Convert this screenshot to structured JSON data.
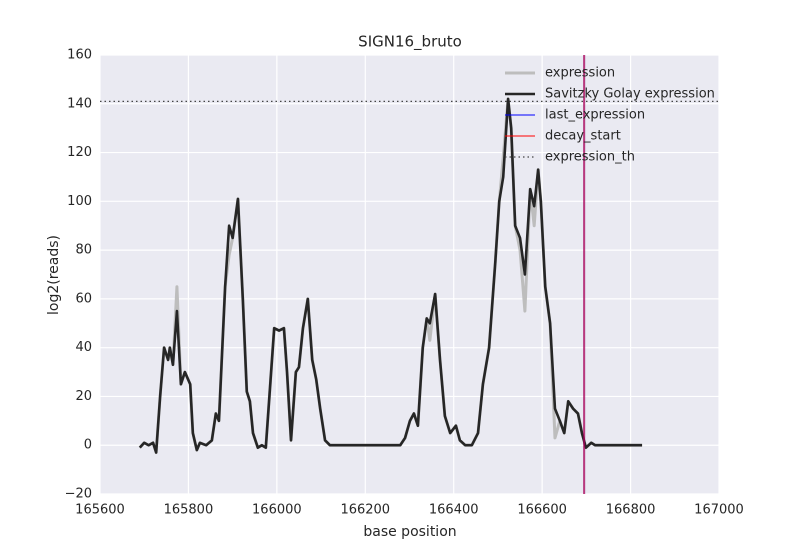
{
  "chart_data": {
    "type": "line",
    "title": "SIGN16_bruto",
    "xlabel": "base position",
    "ylabel": "log2(reads)",
    "x": [
      165690,
      165700,
      165710,
      165720,
      165727,
      165736,
      165745,
      165754,
      165758,
      165765,
      165774,
      165783,
      165792,
      165804,
      165810,
      165819,
      165826,
      165840,
      165853,
      165862,
      165869,
      165883,
      165892,
      165900,
      165912,
      165923,
      165932,
      165939,
      165946,
      165957,
      165966,
      165975,
      165994,
      166005,
      166016,
      166023,
      166032,
      166043,
      166050,
      166059,
      166070,
      166080,
      166089,
      166098,
      166109,
      166120,
      166200,
      166279,
      166290,
      166301,
      166310,
      166319,
      166330,
      166339,
      166346,
      166358,
      166369,
      166380,
      166392,
      166405,
      166414,
      166426,
      166441,
      166455,
      166466,
      166480,
      166494,
      166503,
      166512,
      166523,
      166530,
      166539,
      166550,
      166561,
      166573,
      166582,
      166591,
      166597,
      166607,
      166618,
      166629,
      166640,
      166650,
      166659,
      166670,
      166681,
      166690,
      166699,
      166711,
      166720,
      166826
    ],
    "series": [
      {
        "name": "expression",
        "color": "#bdbdbd",
        "values": [
          -1,
          1,
          0,
          1,
          -3,
          20,
          40,
          35,
          40,
          33,
          65,
          25,
          30,
          25,
          5,
          -2,
          1,
          0,
          2,
          13,
          10,
          65,
          78,
          85,
          101,
          60,
          22,
          18,
          5,
          -1,
          0,
          -1,
          48,
          47,
          48,
          30,
          2,
          30,
          32,
          48,
          60,
          35,
          27,
          15,
          2,
          0,
          0,
          0,
          3,
          10,
          13,
          8,
          40,
          52,
          43,
          62,
          35,
          12,
          5,
          8,
          2,
          0,
          0,
          5,
          25,
          40,
          75,
          100,
          118,
          142,
          130,
          90,
          80,
          55,
          105,
          90,
          113,
          100,
          65,
          50,
          3,
          10,
          5,
          18,
          15,
          13,
          5,
          -1,
          1,
          0,
          0
        ]
      },
      {
        "name": "Savitzky Golay expression",
        "color": "#262626",
        "values": [
          -1,
          1,
          0,
          1,
          -3,
          20,
          40,
          35,
          40,
          33,
          55,
          25,
          30,
          25,
          5,
          -2,
          1,
          0,
          2,
          13,
          10,
          65,
          90,
          85,
          101,
          60,
          22,
          18,
          5,
          -1,
          0,
          -1,
          48,
          47,
          48,
          30,
          2,
          30,
          32,
          48,
          60,
          35,
          27,
          15,
          2,
          0,
          0,
          0,
          3,
          10,
          13,
          8,
          40,
          52,
          50,
          62,
          35,
          12,
          5,
          8,
          2,
          0,
          0,
          5,
          25,
          40,
          75,
          100,
          110,
          142,
          130,
          90,
          85,
          70,
          105,
          98,
          113,
          100,
          65,
          50,
          15,
          10,
          5,
          18,
          15,
          13,
          5,
          -1,
          1,
          0,
          0
        ]
      }
    ],
    "vlines": [
      {
        "name": "last_expression",
        "color": "#0000ff",
        "x": 166695
      },
      {
        "name": "decay_start",
        "color": "#ff0000",
        "x": 166695
      }
    ],
    "hlines": [
      {
        "name": "expression_th",
        "color": "#444444",
        "y": 141,
        "style": "dotted"
      }
    ],
    "xlim": [
      165600,
      167000
    ],
    "xticks": [
      165600,
      165800,
      166000,
      166200,
      166400,
      166600,
      166800,
      167000
    ],
    "ylim": [
      -20,
      160
    ],
    "yticks": [
      {
        "value": -20,
        "label": "−20"
      },
      0,
      20,
      40,
      60,
      80,
      100,
      120,
      140,
      160
    ],
    "grid": true,
    "legend": "upper right"
  }
}
